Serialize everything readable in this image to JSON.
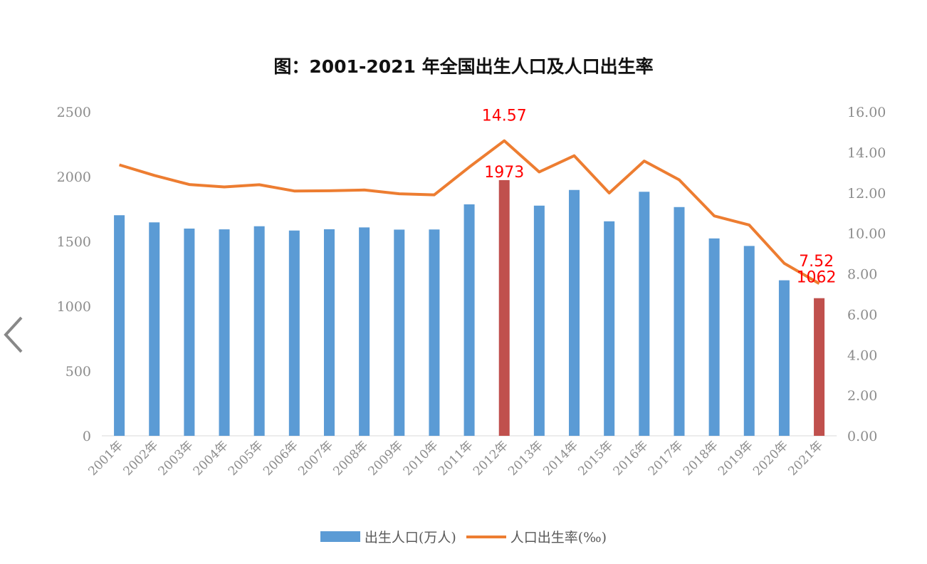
{
  "chart_data": {
    "type": "bar+line",
    "title": "图：2001-2021 年全国出生人口及人口出生率",
    "categories": [
      "2001年",
      "2002年",
      "2003年",
      "2004年",
      "2005年",
      "2006年",
      "2007年",
      "2008年",
      "2009年",
      "2010年",
      "2011年",
      "2012年",
      "2013年",
      "2014年",
      "2015年",
      "2016年",
      "2017年",
      "2018年",
      "2019年",
      "2020年",
      "2021年"
    ],
    "series": [
      {
        "name": "出生人口(万人)",
        "type": "bar",
        "axis": "left",
        "color": "#5B9BD5",
        "highlight_color": "#C0504D",
        "highlight": [
          "2012年",
          "2021年"
        ],
        "values": [
          1702,
          1647,
          1599,
          1593,
          1617,
          1584,
          1594,
          1608,
          1591,
          1592,
          1786,
          1973,
          1776,
          1897,
          1655,
          1883,
          1765,
          1523,
          1465,
          1200,
          1062
        ]
      },
      {
        "name": "人口出生率(‰)",
        "type": "line",
        "axis": "right",
        "color": "#ED7D31",
        "values": [
          13.38,
          12.86,
          12.41,
          12.29,
          12.4,
          12.09,
          12.1,
          12.14,
          11.95,
          11.9,
          13.27,
          14.57,
          13.03,
          13.83,
          11.99,
          13.57,
          12.64,
          10.86,
          10.41,
          8.52,
          7.52
        ]
      }
    ],
    "left_axis": {
      "ylim": [
        0,
        2500
      ],
      "ticks": [
        "0",
        "500",
        "1000",
        "1500",
        "2000",
        "2500"
      ]
    },
    "right_axis": {
      "ylim": [
        0,
        16
      ],
      "ticks": [
        "0.00",
        "2.00",
        "4.00",
        "6.00",
        "8.00",
        "10.00",
        "12.00",
        "14.00",
        "16.00"
      ]
    },
    "annotations": [
      {
        "category": "2012年",
        "text": "14.57"
      },
      {
        "category": "2012年",
        "text": "1973"
      },
      {
        "category": "2021年",
        "text": "7.52"
      },
      {
        "category": "2021年",
        "text": "1062"
      }
    ],
    "annotation_color": "#FF0000",
    "grid": false,
    "legend": "bottom"
  },
  "nav": {
    "back_icon": "chevron-left-icon"
  }
}
